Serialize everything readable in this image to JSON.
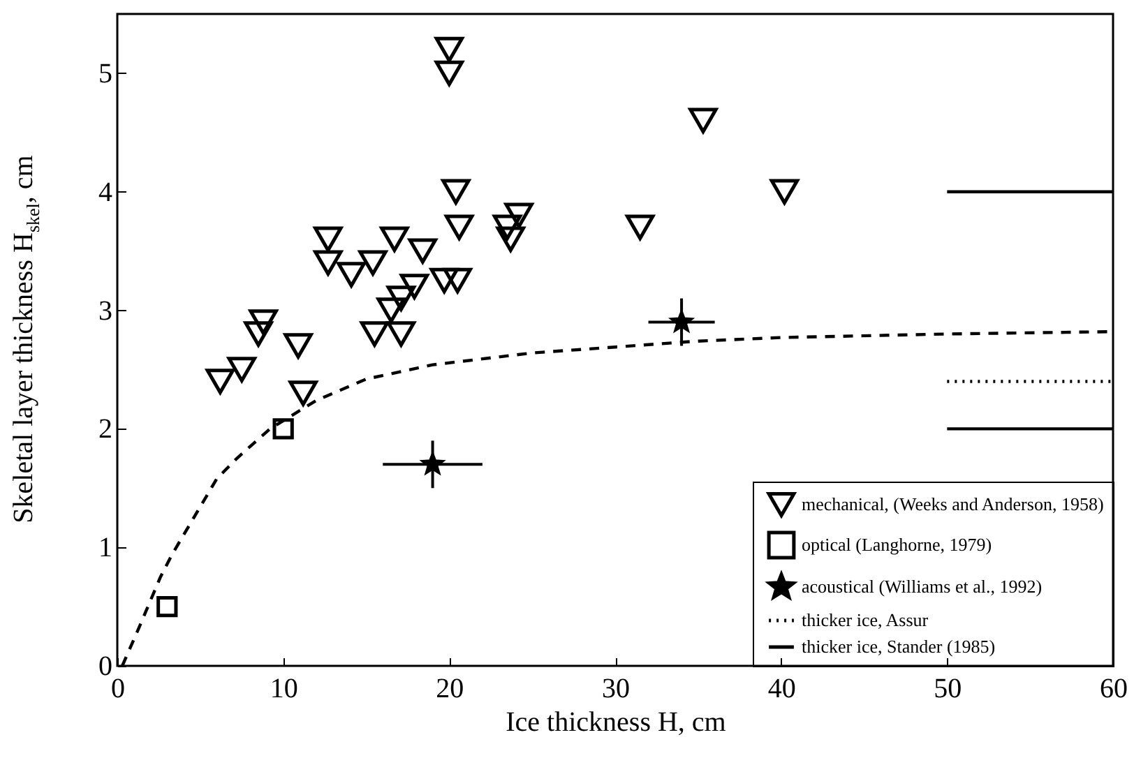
{
  "chart_data": {
    "type": "scatter",
    "xlabel": "Ice thickness H, cm",
    "ylabel": "Skeletal layer thickness H$_{skel}$, cm",
    "xlim": [
      0,
      60
    ],
    "ylim": [
      0,
      5.5
    ],
    "xticks": [
      0,
      10,
      20,
      30,
      40,
      50,
      60
    ],
    "yticks": [
      0,
      1,
      2,
      3,
      4,
      5
    ],
    "legend": "bottom right",
    "series": [
      {
        "name": "mechanical, (Weeks and Anderson, 1958)",
        "color": "#000000",
        "marker": "triangle",
        "x": [
          20,
          20,
          20.4,
          20.6,
          12.7,
          12.7,
          14.1,
          15.4,
          16.7,
          18.4,
          19.7,
          20.5,
          17.9,
          17.1,
          16.5,
          15.5,
          17.1,
          8.8,
          8.5,
          10.9,
          6.2,
          7.5,
          11.2,
          23.5,
          24.2,
          23.7,
          35.3,
          40.2,
          31.5
        ],
        "values": [
          5.2,
          5.0,
          4.0,
          3.7,
          3.6,
          3.4,
          3.3,
          3.4,
          3.6,
          3.5,
          3.25,
          3.25,
          3.2,
          3.1,
          3.0,
          2.8,
          2.8,
          2.9,
          2.8,
          2.7,
          2.4,
          2.5,
          2.3,
          3.7,
          3.8,
          3.6,
          4.6,
          4.0,
          3.7
        ]
      },
      {
        "name": "optical (Langhorne, 1979)",
        "color": "#000000",
        "marker": "square",
        "x": [
          3,
          10
        ],
        "values": [
          0.5,
          2.0
        ]
      },
      {
        "name": "acoustical (Williams et al., 1992)",
        "color": "#000000",
        "marker": "star",
        "x": [
          19,
          34
        ],
        "values": [
          1.7,
          2.9
        ],
        "errors": [
          0.2,
          0.2
        ],
        "xerrors": [
          3,
          2
        ]
      },
      {
        "type": "line",
        "name": "thicker ice, Assur",
        "color": "#000000",
        "line_style": "dotted",
        "x": [
          50,
          60
        ],
        "values": [
          2.4,
          2.4
        ]
      },
      {
        "type": "line",
        "name": "thicker ice, Stander (1985)",
        "color": "#000000",
        "line_style": "solid",
        "x": [
          50,
          60
        ],
        "values": [
          4,
          4
        ]
      },
      {
        "type": "line",
        "color": "#000000",
        "line_style": "solid",
        "x": [
          50,
          60
        ],
        "values": [
          2,
          2
        ]
      },
      {
        "type": "line",
        "color": "#000000",
        "line_style": "dashed",
        "x": [
          0.3,
          1.3,
          2.6,
          3.3,
          6,
          7.2,
          9.2,
          12,
          15,
          19,
          25,
          30,
          35,
          40,
          50,
          60
        ],
        "values": [
          0,
          0.32,
          0.75,
          0.94,
          1.58,
          1.75,
          2.0,
          2.24,
          2.42,
          2.54,
          2.64,
          2.69,
          2.74,
          2.77,
          2.8,
          2.82
        ]
      }
    ]
  }
}
